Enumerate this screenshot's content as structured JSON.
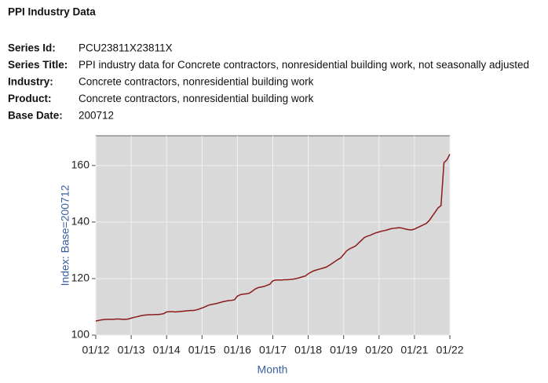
{
  "header": {
    "title": "PPI Industry Data",
    "fields": [
      {
        "label": "Series Id:",
        "value": "PCU23811X23811X"
      },
      {
        "label": "Series Title:",
        "value": "PPI industry data for Concrete contractors, nonresidential building work, not seasonally adjusted"
      },
      {
        "label": "Industry:",
        "value": "Concrete contractors, nonresidential building work"
      },
      {
        "label": "Product:",
        "value": "Concrete contractors, nonresidential building work"
      },
      {
        "label": "Base Date:",
        "value": "200712"
      }
    ]
  },
  "chart_data": {
    "type": "line",
    "y_label": "Index: Base=200712",
    "x_label": "Month",
    "color": "#8b1a1a",
    "grid": true,
    "x": [
      "01/12",
      "02/12",
      "03/12",
      "04/12",
      "05/12",
      "06/12",
      "07/12",
      "08/12",
      "09/12",
      "10/12",
      "11/12",
      "12/12",
      "01/13",
      "02/13",
      "03/13",
      "04/13",
      "05/13",
      "06/13",
      "07/13",
      "08/13",
      "09/13",
      "10/13",
      "11/13",
      "12/13",
      "01/14",
      "02/14",
      "03/14",
      "04/14",
      "05/14",
      "06/14",
      "07/14",
      "08/14",
      "09/14",
      "10/14",
      "11/14",
      "12/14",
      "01/15",
      "02/15",
      "03/15",
      "04/15",
      "05/15",
      "06/15",
      "07/15",
      "08/15",
      "09/15",
      "10/15",
      "11/15",
      "12/15",
      "01/16",
      "02/16",
      "03/16",
      "04/16",
      "05/16",
      "06/16",
      "07/16",
      "08/16",
      "09/16",
      "10/16",
      "11/16",
      "12/16",
      "01/17",
      "02/17",
      "03/17",
      "04/17",
      "05/17",
      "06/17",
      "07/17",
      "08/17",
      "09/17",
      "10/17",
      "11/17",
      "12/17",
      "01/18",
      "02/18",
      "03/18",
      "04/18",
      "05/18",
      "06/18",
      "07/18",
      "08/18",
      "09/18",
      "10/18",
      "11/18",
      "12/18",
      "01/19",
      "02/19",
      "03/19",
      "04/19",
      "05/19",
      "06/19",
      "07/19",
      "08/19",
      "09/19",
      "10/19",
      "11/19",
      "12/19",
      "01/20",
      "02/20",
      "03/20",
      "04/20",
      "05/20",
      "06/20",
      "07/20",
      "08/20",
      "09/20",
      "10/20",
      "11/20",
      "12/20",
      "01/21",
      "02/21",
      "03/21",
      "04/21",
      "05/21",
      "06/21",
      "07/21",
      "08/21",
      "09/21",
      "10/21",
      "11/21",
      "12/21",
      "01/22"
    ],
    "values": [
      105.0,
      105.2,
      105.4,
      105.5,
      105.6,
      105.6,
      105.6,
      105.7,
      105.7,
      105.6,
      105.6,
      105.7,
      106.0,
      106.3,
      106.5,
      106.8,
      107.0,
      107.1,
      107.2,
      107.2,
      107.3,
      107.3,
      107.4,
      107.6,
      108.2,
      108.3,
      108.3,
      108.2,
      108.3,
      108.4,
      108.5,
      108.6,
      108.7,
      108.7,
      108.9,
      109.2,
      109.6,
      110.0,
      110.5,
      110.8,
      111.0,
      111.2,
      111.5,
      111.8,
      112.0,
      112.2,
      112.3,
      112.5,
      113.8,
      114.3,
      114.5,
      114.6,
      114.8,
      115.5,
      116.3,
      116.8,
      117.0,
      117.2,
      117.6,
      118.0,
      119.2,
      119.5,
      119.5,
      119.5,
      119.6,
      119.6,
      119.7,
      119.8,
      120.0,
      120.3,
      120.6,
      120.9,
      121.7,
      122.3,
      122.8,
      123.1,
      123.4,
      123.7,
      124.0,
      124.6,
      125.3,
      126.0,
      126.7,
      127.3,
      128.5,
      129.8,
      130.5,
      131.0,
      131.5,
      132.5,
      133.5,
      134.5,
      135.0,
      135.3,
      135.8,
      136.2,
      136.5,
      136.8,
      137.0,
      137.3,
      137.6,
      137.8,
      137.9,
      138.0,
      137.8,
      137.5,
      137.3,
      137.2,
      137.5,
      138.0,
      138.5,
      139.0,
      139.5,
      140.5,
      142.0,
      143.5,
      145.0,
      145.8,
      161.0,
      162.0,
      164.0
    ],
    "xticks": [
      "01/12",
      "01/13",
      "01/14",
      "01/15",
      "01/16",
      "01/17",
      "01/18",
      "01/19",
      "01/20",
      "01/21",
      "01/22"
    ],
    "ylim": [
      100,
      170.5
    ],
    "yticks": [
      100,
      120,
      140,
      160
    ]
  }
}
